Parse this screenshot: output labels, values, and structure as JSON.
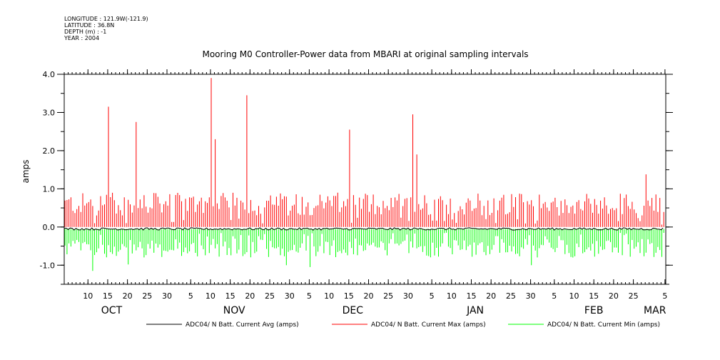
{
  "meta": {
    "longitude": "LONGITUDE : 121.9W(-121.9)",
    "latitude": "LATITUDE : 36.8N",
    "depth": "DEPTH (m) : -1",
    "year": "YEAR : 2004"
  },
  "chart_data": {
    "type": "line",
    "title": "Mooring M0 Controller-Power data from MBARI at original sampling intervals",
    "ylabel": "amps",
    "xlabel": "",
    "ylim": [
      -1.5,
      4.0
    ],
    "yticks": [
      -1.0,
      0.0,
      1.0,
      2.0,
      3.0,
      4.0
    ],
    "ytick_labels": [
      "-1.0",
      "0.0",
      "1.0",
      "2.0",
      "3.0",
      "4.0"
    ],
    "x_day_ticks": [
      "10",
      "15",
      "20",
      "25",
      "30",
      "5",
      "10",
      "15",
      "20",
      "25",
      "30",
      "5",
      "10",
      "15",
      "20",
      "25",
      "30",
      "5",
      "10",
      "15",
      "20",
      "25",
      "30",
      "5",
      "10",
      "15",
      "20",
      "25",
      "5"
    ],
    "x_month_labels": [
      "OCT",
      "NOV",
      "DEC",
      "JAN",
      "FEB",
      "MAR"
    ],
    "grid": false,
    "legend_position": "bottom",
    "series": [
      {
        "name": "ADC04/ N Batt. Current Avg (amps)",
        "color": "#000000",
        "approx_level": -0.05
      },
      {
        "name": "ADC04/ N Batt. Current Max (amps)",
        "color": "#ff0000",
        "peaks": [
          {
            "date": "Oct 15",
            "value": 3.15
          },
          {
            "date": "Oct 22",
            "value": 2.75
          },
          {
            "date": "Nov 10",
            "value": 3.9
          },
          {
            "date": "Nov 11",
            "value": 2.3
          },
          {
            "date": "Nov 19",
            "value": 3.45
          },
          {
            "date": "Dec 15",
            "value": 2.55
          },
          {
            "date": "Dec 31",
            "value": 2.95
          },
          {
            "date": "Jan 1",
            "value": 1.9
          },
          {
            "date": "Feb 28",
            "value": 1.38
          }
        ],
        "typical_range": [
          0.3,
          0.9
        ]
      },
      {
        "name": "ADC04/ N Batt. Current Min (amps)",
        "color": "#00ff00",
        "troughs": [
          {
            "date": "Oct 11",
            "value": -1.15
          },
          {
            "date": "Oct 20",
            "value": -0.98
          },
          {
            "date": "Nov 29",
            "value": -1.0
          },
          {
            "date": "Dec 5",
            "value": -1.05
          },
          {
            "date": "Jan 30",
            "value": -1.0
          }
        ],
        "typical_range": [
          -0.8,
          -0.3
        ]
      }
    ]
  }
}
